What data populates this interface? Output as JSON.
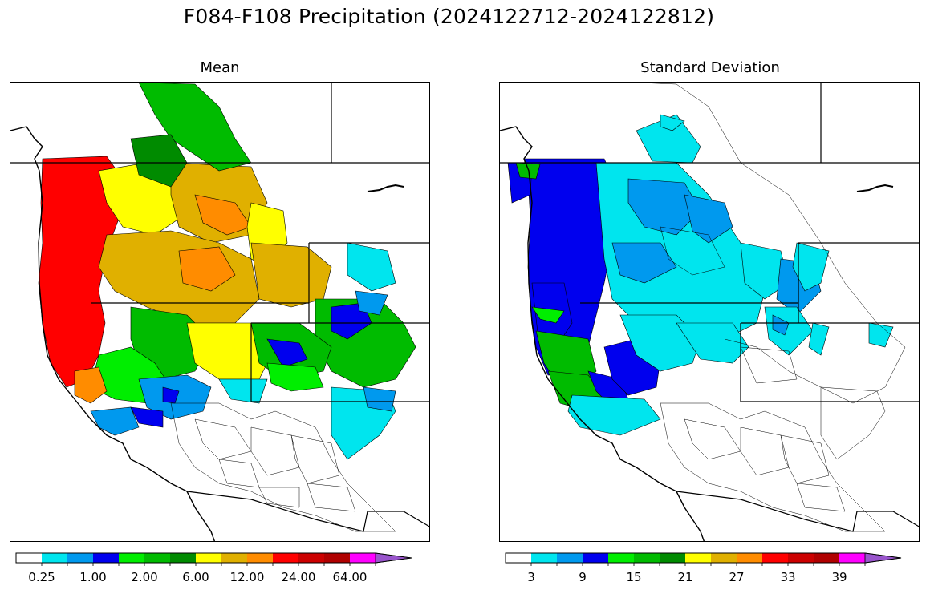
{
  "figure": {
    "title": "F084-F108 Precipitation (2024122712-2024122812)"
  },
  "panels": [
    {
      "title": "Mean",
      "colorbar": {
        "colors": [
          "#ffffff",
          "#00e5ee",
          "#0099ee",
          "#0000ee",
          "#00ee00",
          "#00bb00",
          "#008b00",
          "#ffff00",
          "#e0b000",
          "#ff8c00",
          "#ff0000",
          "#cc0000",
          "#b00000",
          "#ff00ff",
          "#9955cc"
        ],
        "tick_labels": [
          "0.25",
          "1.00",
          "2.00",
          "6.00",
          "12.00",
          "24.00",
          "64.00"
        ],
        "extend": "max"
      }
    },
    {
      "title": "Standard Deviation",
      "colorbar": {
        "colors": [
          "#ffffff",
          "#00e5ee",
          "#0099ee",
          "#0000ee",
          "#00ee00",
          "#00bb00",
          "#008b00",
          "#ffff00",
          "#e0b000",
          "#ff8c00",
          "#ff0000",
          "#cc0000",
          "#b00000",
          "#ff00ff",
          "#9955cc"
        ],
        "tick_labels": [
          "3",
          "9",
          "15",
          "21",
          "27",
          "33",
          "39"
        ],
        "extend": "max"
      }
    }
  ]
}
